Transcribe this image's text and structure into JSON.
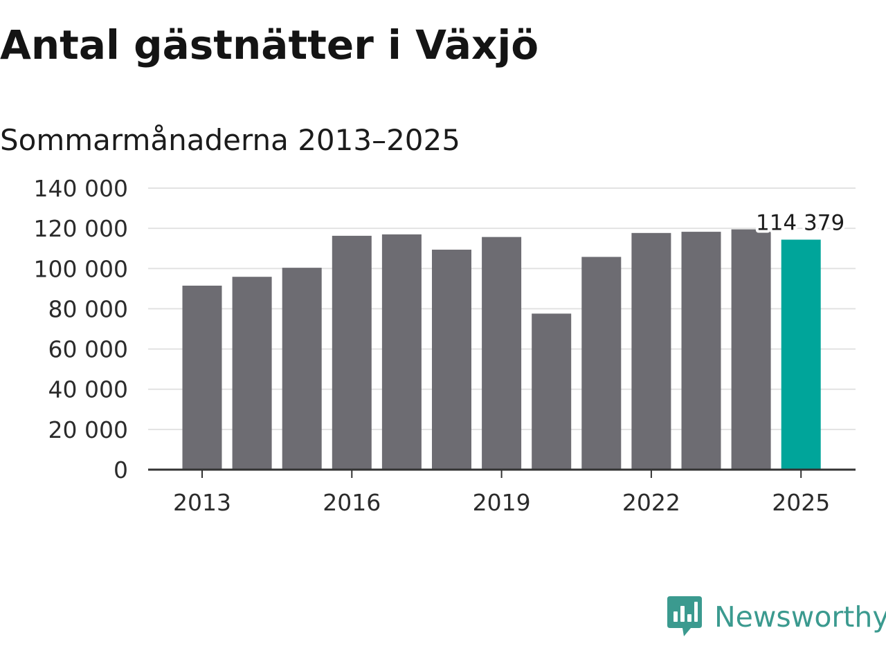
{
  "chart_data": {
    "type": "bar",
    "title": "Antal gästnätter i Växjö",
    "subtitle": "Sommarmånaderna 2013–2025",
    "categories": [
      "2013",
      "2014",
      "2015",
      "2016",
      "2017",
      "2018",
      "2019",
      "2020",
      "2021",
      "2022",
      "2023",
      "2024",
      "2025"
    ],
    "values": [
      91500,
      95900,
      100400,
      116300,
      117000,
      109400,
      115700,
      77600,
      105800,
      117700,
      118300,
      119500,
      114379
    ],
    "x_tick_labels": [
      "2013",
      "2016",
      "2019",
      "2022",
      "2025"
    ],
    "y_tick_labels": [
      "0",
      "20 000",
      "40 000",
      "60 000",
      "80 000",
      "100 000",
      "120 000",
      "140 000"
    ],
    "ylim": [
      0,
      140000
    ],
    "grid": true,
    "highlight": {
      "category": "2025",
      "value_label": "114 379"
    },
    "colors": {
      "bar": "#6d6c72",
      "highlight": "#00a59a",
      "grid": "#e2e2e2",
      "axis": "#333333"
    }
  },
  "brand": {
    "name": "Newsworthy",
    "icon": "newsworthy-logo-icon",
    "color": "#3b9a8f"
  }
}
